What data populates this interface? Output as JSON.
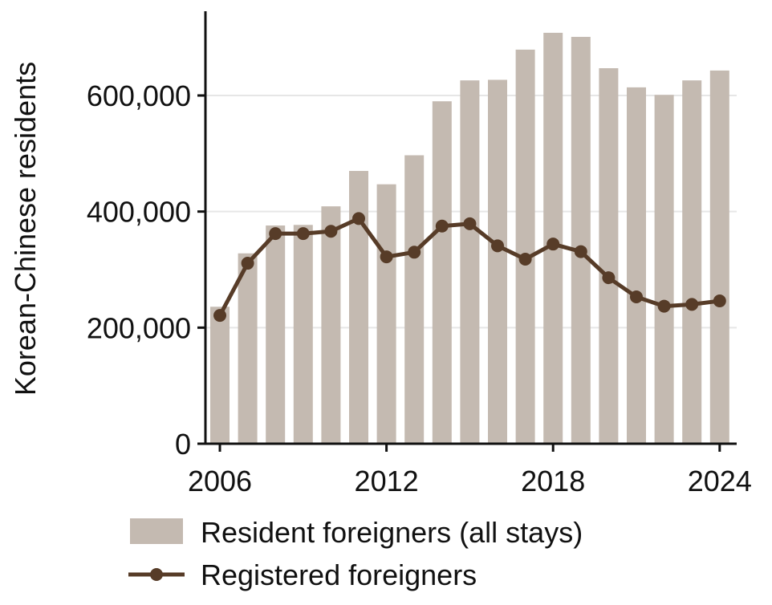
{
  "chart_data": {
    "type": "bar",
    "ylabel": "Korean-Chinese residents",
    "xlabel": "",
    "x": [
      2006,
      2007,
      2008,
      2009,
      2010,
      2011,
      2012,
      2013,
      2014,
      2015,
      2016,
      2017,
      2018,
      2019,
      2020,
      2021,
      2022,
      2023,
      2024
    ],
    "xticks": [
      "2006",
      "2012",
      "2018",
      "2024"
    ],
    "yticks": [
      "0",
      "200,000",
      "400,000",
      "600,000"
    ],
    "ylim": [
      0,
      745000
    ],
    "grid": "horizontal",
    "legend_position": "bottom",
    "series": [
      {
        "name": "Resident foreigners (all stays)",
        "type": "bar",
        "color": "#c4bab1",
        "values": [
          236000,
          328000,
          376000,
          377000,
          409000,
          470000,
          447000,
          497000,
          590000,
          626000,
          627000,
          679000,
          708000,
          701000,
          647000,
          614000,
          601000,
          626000,
          643000
        ]
      },
      {
        "name": "Registered foreigners",
        "type": "line",
        "color": "#573c28",
        "values": [
          221000,
          311000,
          362000,
          362000,
          366000,
          388000,
          322000,
          330000,
          375000,
          379000,
          341000,
          318000,
          344000,
          331000,
          286000,
          253000,
          237000,
          240000,
          246000
        ]
      }
    ]
  }
}
